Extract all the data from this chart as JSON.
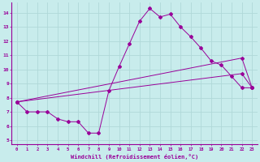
{
  "xlabel": "Windchill (Refroidissement éolien,°C)",
  "bg_color": "#c8ecec",
  "line_color": "#990099",
  "grid_color": "#b0d8d8",
  "xlim": [
    -0.5,
    23.5
  ],
  "ylim": [
    4.7,
    14.7
  ],
  "yticks": [
    5,
    6,
    7,
    8,
    9,
    10,
    11,
    12,
    13,
    14
  ],
  "xticks": [
    0,
    1,
    2,
    3,
    4,
    5,
    6,
    7,
    8,
    9,
    10,
    11,
    12,
    13,
    14,
    15,
    16,
    17,
    18,
    19,
    20,
    21,
    22,
    23
  ],
  "line1_x": [
    0,
    1,
    2,
    3,
    4,
    5,
    6,
    7,
    8,
    9,
    10,
    11,
    12,
    13,
    14,
    15,
    16,
    17,
    18,
    19,
    20,
    21,
    22,
    23
  ],
  "line1_y": [
    7.7,
    7.0,
    7.0,
    7.0,
    6.5,
    6.3,
    6.3,
    5.5,
    5.5,
    8.5,
    10.2,
    11.8,
    13.4,
    14.3,
    13.7,
    13.9,
    13.0,
    12.3,
    11.5,
    10.6,
    10.3,
    9.5,
    8.7,
    8.7
  ],
  "line2_x": [
    0,
    22,
    23
  ],
  "line2_y": [
    7.7,
    10.8,
    8.7
  ],
  "line3_x": [
    0,
    22,
    23
  ],
  "line3_y": [
    7.7,
    9.7,
    8.7
  ]
}
